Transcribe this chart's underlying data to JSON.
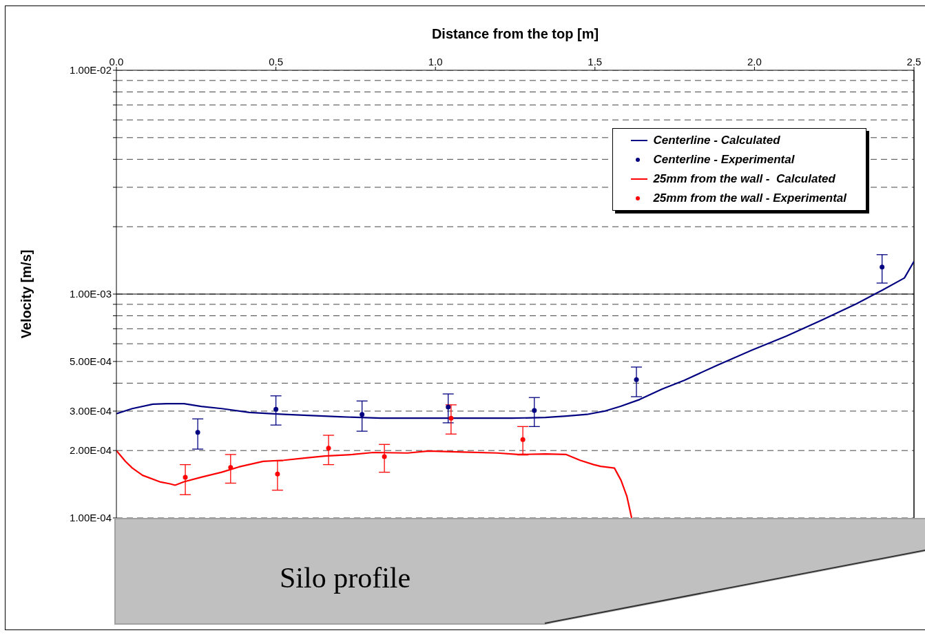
{
  "chart_data": {
    "type": "line",
    "xlabel": "Distance from the top [m]",
    "ylabel": "Velocity [m/s]",
    "xlim": [
      0,
      2.5
    ],
    "xticks": [
      {
        "value": 0,
        "label": "0.0"
      },
      {
        "value": 0.5,
        "label": "0.5"
      },
      {
        "value": 1,
        "label": "1.0"
      },
      {
        "value": 1.5,
        "label": "1.5"
      },
      {
        "value": 2,
        "label": "2.0"
      },
      {
        "value": 2.5,
        "label": "2.5"
      }
    ],
    "ylim": [
      0.0001,
      0.01
    ],
    "log": "y",
    "grid": "y",
    "yticks": [
      {
        "value": 0.01,
        "label": "1.00E-02"
      },
      {
        "value": 0.009,
        "label": null
      },
      {
        "value": 0.008,
        "label": null
      },
      {
        "value": 0.007,
        "label": null
      },
      {
        "value": 0.006,
        "label": null
      },
      {
        "value": 0.005,
        "label": null
      },
      {
        "value": 0.004,
        "label": null
      },
      {
        "value": 0.003,
        "label": null
      },
      {
        "value": 0.002,
        "label": null
      },
      {
        "value": 0.001,
        "label": "1.00E-03"
      },
      {
        "value": 0.0009,
        "label": null
      },
      {
        "value": 0.0008,
        "label": null
      },
      {
        "value": 0.0007,
        "label": null
      },
      {
        "value": 0.0006,
        "label": null
      },
      {
        "value": 0.0005,
        "label": "5.00E-04"
      },
      {
        "value": 0.0004,
        "label": null
      },
      {
        "value": 0.0003,
        "label": "3.00E-04"
      },
      {
        "value": 0.0002,
        "label": "2.00E-04"
      },
      {
        "value": 0.0001,
        "label": "1.00E-04"
      }
    ],
    "legend": "top right",
    "ref_lines": [
      {
        "axis": "y",
        "value": 0.001,
        "color": "#000000",
        "line_style": "solid"
      }
    ],
    "series": [
      {
        "name": "Centerline - Calculated",
        "color": "#000080",
        "x": [
          0,
          0.05,
          0.114,
          0.158,
          0.212,
          0.266,
          0.33,
          0.417,
          0.525,
          0.7,
          0.83,
          1.02,
          1.24,
          1.345,
          1.41,
          1.475,
          1.53,
          1.58,
          1.64,
          1.71,
          1.78,
          1.885,
          1.99,
          2.1,
          2.21,
          2.32,
          2.4,
          2.47,
          2.5
        ],
        "values": [
          0.000292,
          0.000308,
          0.000322,
          0.000324,
          0.000324,
          0.000315,
          0.000308,
          0.000296,
          0.00029,
          0.000283,
          0.000279,
          0.000279,
          0.000279,
          0.000281,
          0.000285,
          0.00029,
          0.0003,
          0.000315,
          0.000338,
          0.000376,
          0.000412,
          0.000482,
          0.00056,
          0.000649,
          0.000764,
          0.000906,
          0.00104,
          0.00118,
          0.0014
        ]
      },
      {
        "name": "Centerline - Experimental",
        "type": "scatter",
        "marker": "circle",
        "color": "#000080",
        "x": [
          0.255,
          0.5,
          0.77,
          1.04,
          1.31,
          1.63,
          2.4
        ],
        "values": [
          0.000241,
          0.000306,
          0.00029,
          0.000313,
          0.000302,
          0.000415,
          0.00132
        ],
        "errors": [
          [
            0.000203,
            0.000277
          ],
          [
            0.00026,
            0.000351
          ],
          [
            0.000244,
            0.000333
          ],
          [
            0.000266,
            0.000358
          ],
          [
            0.000256,
            0.000345
          ],
          [
            0.000348,
            0.000472
          ],
          [
            0.00112,
            0.0015
          ]
        ]
      },
      {
        "name": "25mm from the wall -  Calculated",
        "color": "#ff0000",
        "x": [
          0,
          0.028,
          0.05,
          0.082,
          0.136,
          0.168,
          0.184,
          0.212,
          0.266,
          0.33,
          0.384,
          0.46,
          0.525,
          0.589,
          0.654,
          0.74,
          0.805,
          0.913,
          0.978,
          1.086,
          1.194,
          1.259,
          1.345,
          1.41,
          1.453,
          1.496,
          1.518,
          1.561,
          1.582,
          1.6,
          1.615
        ],
        "values": [
          0.0002,
          0.000179,
          0.000167,
          0.000155,
          0.000145,
          0.000142,
          0.00014,
          0.000145,
          0.000152,
          0.00016,
          0.000169,
          0.000179,
          0.000181,
          0.000185,
          0.000189,
          0.000192,
          0.000196,
          0.000195,
          0.000199,
          0.000197,
          0.000195,
          0.000192,
          0.000193,
          0.000192,
          0.000181,
          0.000173,
          0.00017,
          0.000167,
          0.000147,
          0.000125,
          0.0001
        ]
      },
      {
        "name": "25mm from the wall - Experimental",
        "type": "scatter",
        "marker": "circle",
        "color": "#ff0000",
        "x": [
          0.216,
          0.358,
          0.505,
          0.665,
          0.84,
          1.049,
          1.274
        ],
        "values": [
          0.000152,
          0.000168,
          0.000157,
          0.000205,
          0.000188,
          0.000279,
          0.000224
        ],
        "errors": [
          [
            0.000127,
            0.000173
          ],
          [
            0.000143,
            0.000192
          ],
          [
            0.000133,
            0.00018
          ],
          [
            0.000173,
            0.000234
          ],
          [
            0.00016,
            0.000213
          ],
          [
            0.000237,
            0.00032
          ],
          [
            0.000191,
            0.000256
          ]
        ]
      }
    ],
    "annotations": [
      "Silo profile"
    ]
  }
}
